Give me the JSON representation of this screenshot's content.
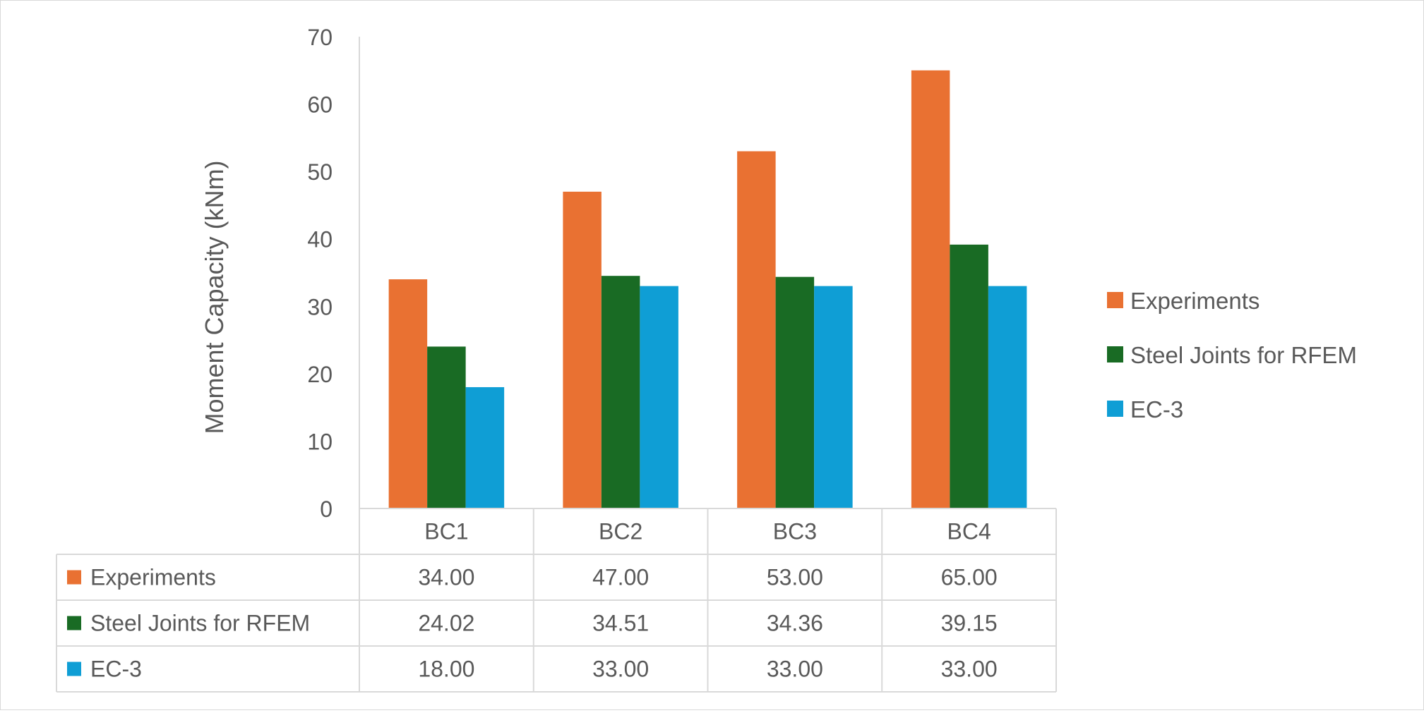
{
  "chart_data": {
    "type": "bar",
    "ylabel": "Moment Capacity (kNm)",
    "xlabel": "",
    "ylim": [
      0,
      70
    ],
    "yticks": [
      0,
      10,
      20,
      30,
      40,
      50,
      60,
      70
    ],
    "categories": [
      "BC1",
      "BC2",
      "BC3",
      "BC4"
    ],
    "series": [
      {
        "name": "Experiments",
        "color": "#E97132",
        "values": [
          34.0,
          47.0,
          53.0,
          65.0
        ],
        "labels": [
          "34.00",
          "47.00",
          "53.00",
          "65.00"
        ]
      },
      {
        "name": "Steel Joints for RFEM",
        "color": "#196B24",
        "values": [
          24.02,
          34.51,
          34.36,
          39.15
        ],
        "labels": [
          "24.02",
          "34.51",
          "34.36",
          "39.15"
        ]
      },
      {
        "name": "EC-3",
        "color": "#0F9ED5",
        "values": [
          18.0,
          33.0,
          33.0,
          33.0
        ],
        "labels": [
          "18.00",
          "33.00",
          "33.00",
          "33.00"
        ]
      }
    ],
    "grid": false,
    "legend": "right",
    "data_table": true
  }
}
